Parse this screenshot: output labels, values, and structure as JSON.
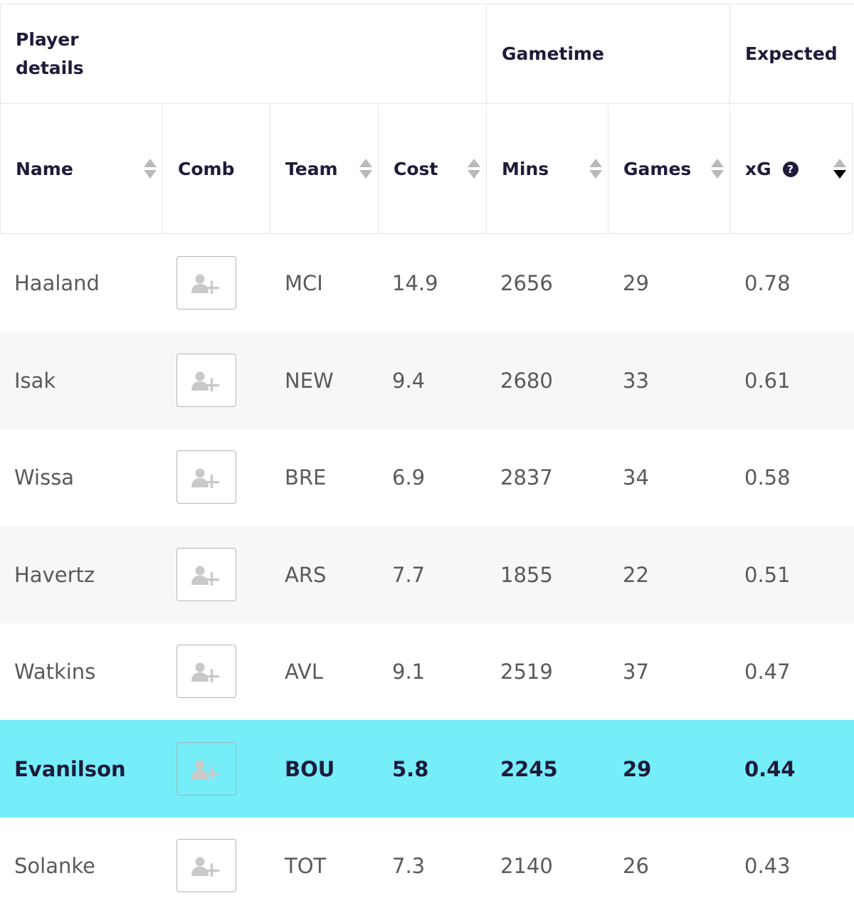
{
  "groups": [
    "Player details",
    "Gametime",
    "Expected"
  ],
  "columns": {
    "name": "Name",
    "comb": "Comb",
    "team": "Team",
    "cost": "Cost",
    "mins": "Mins",
    "games": "Games",
    "xg": "xG"
  },
  "help_glyph": "?",
  "icons": {
    "sort": "sort-arrows-icon",
    "help": "help-icon",
    "add_player": "add-user-icon"
  },
  "colors": {
    "highlight": "#76eefa",
    "stripe": "#f7f7f7",
    "text_dark": "#1e1b3a"
  },
  "sort": {
    "column": "xG",
    "direction": "descending"
  },
  "rows": [
    {
      "name": "Haaland",
      "team": "MCI",
      "cost": "14.9",
      "mins": "2656",
      "games": "29",
      "xg": "0.78"
    },
    {
      "name": "Isak",
      "team": "NEW",
      "cost": "9.4",
      "mins": "2680",
      "games": "33",
      "xg": "0.61"
    },
    {
      "name": "Wissa",
      "team": "BRE",
      "cost": "6.9",
      "mins": "2837",
      "games": "34",
      "xg": "0.58"
    },
    {
      "name": "Havertz",
      "team": "ARS",
      "cost": "7.7",
      "mins": "1855",
      "games": "22",
      "xg": "0.51"
    },
    {
      "name": "Watkins",
      "team": "AVL",
      "cost": "9.1",
      "mins": "2519",
      "games": "37",
      "xg": "0.47"
    },
    {
      "name": "Evanilson",
      "team": "BOU",
      "cost": "5.8",
      "mins": "2245",
      "games": "29",
      "xg": "0.44",
      "highlighted": true
    },
    {
      "name": "Solanke",
      "team": "TOT",
      "cost": "7.3",
      "mins": "2140",
      "games": "26",
      "xg": "0.43"
    }
  ]
}
